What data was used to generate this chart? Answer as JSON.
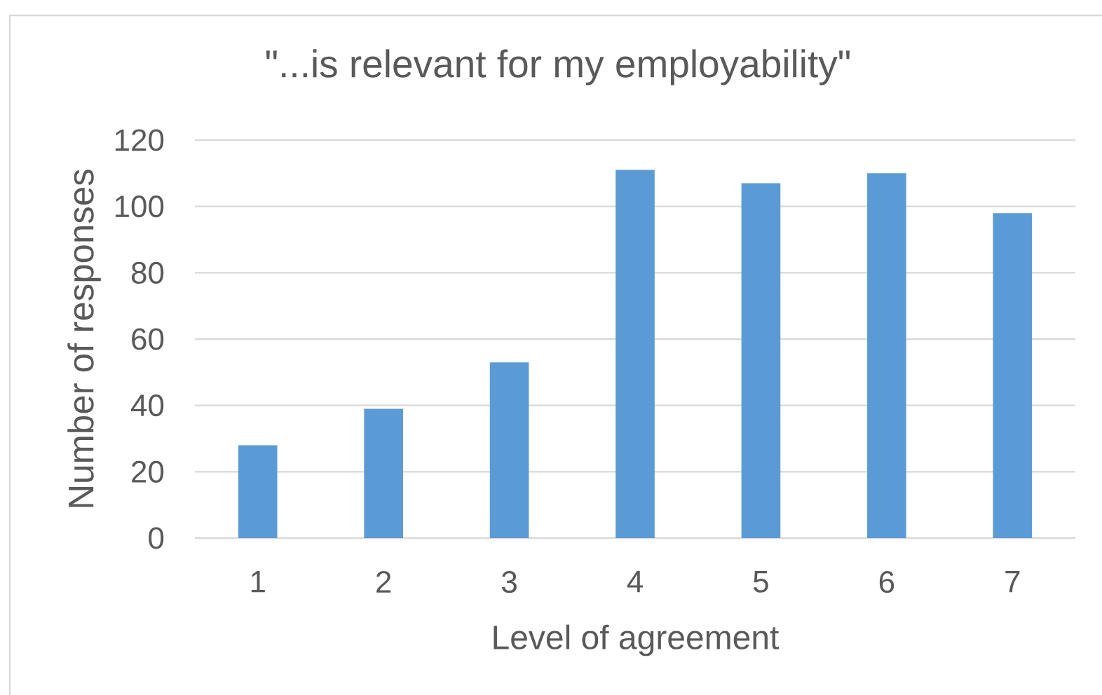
{
  "chart_data": {
    "type": "bar",
    "title": "\"...is relevant for my employability\"",
    "xlabel": "Level of agreement",
    "ylabel": "Number of responses",
    "categories": [
      "1",
      "2",
      "3",
      "4",
      "5",
      "6",
      "7"
    ],
    "values": [
      28,
      39,
      53,
      111,
      107,
      110,
      98
    ],
    "color": "#5b9bd5",
    "ylim": [
      0,
      120
    ],
    "yticks": [
      0,
      20,
      40,
      60,
      80,
      100,
      120
    ],
    "grid": "y"
  }
}
